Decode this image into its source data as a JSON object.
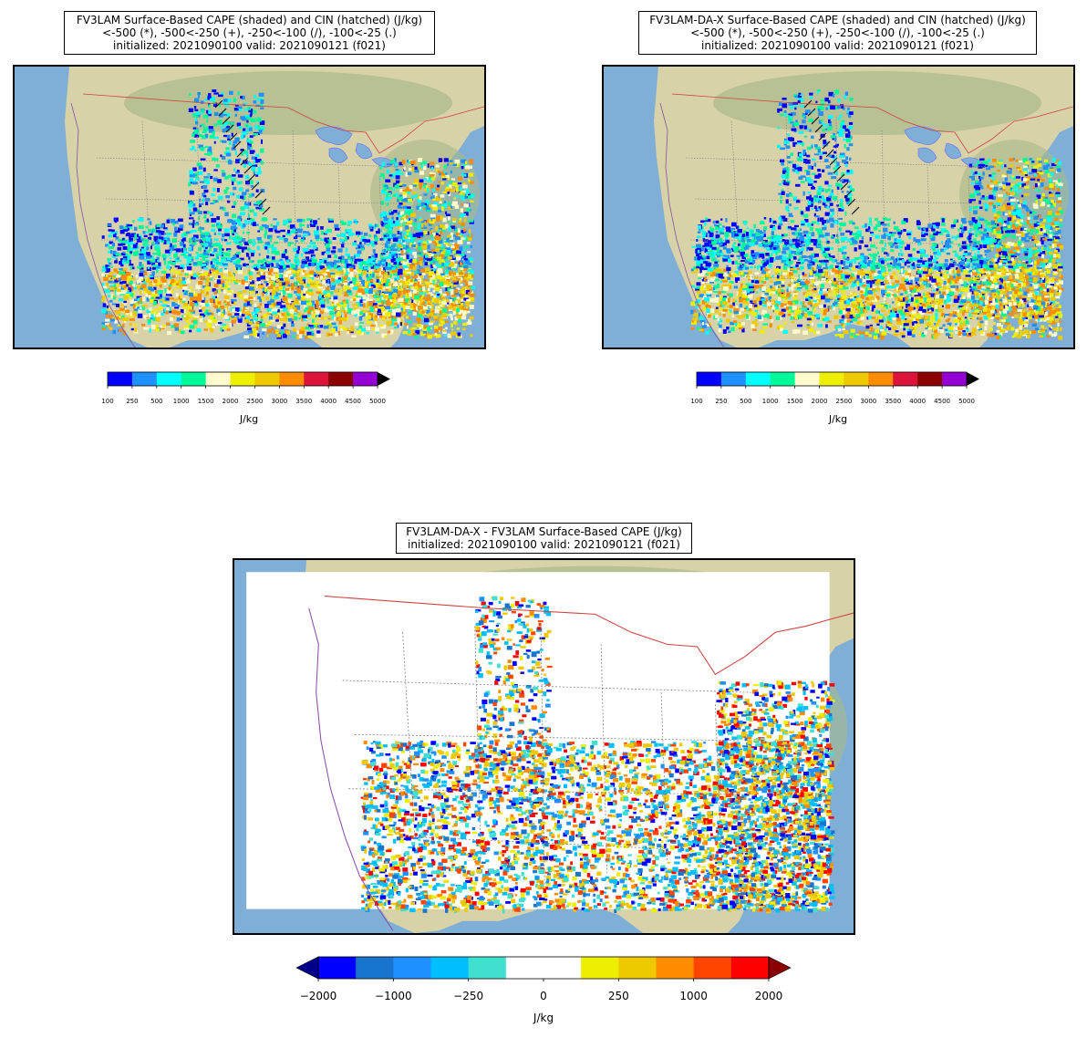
{
  "panels": [
    {
      "title_line1": "FV3LAM Surface-Based CAPE (shaded) and CIN (hatched) (J/kg)",
      "title_line2": "<-500 (*), -500<-250 (+), -250<-100 (/), -100<-25 (.)",
      "title_line3": "initialized: 2021090100 valid: 2021090121 (f021)"
    },
    {
      "title_line1": "FV3LAM-DA-X Surface-Based CAPE (shaded) and CIN (hatched) (J/kg)",
      "title_line2": "<-500 (*), -500<-250 (+), -250<-100 (/), -100<-25 (.)",
      "title_line3": "initialized: 2021090100 valid: 2021090121 (f021)"
    },
    {
      "title_line1": "FV3LAM-DA-X - FV3LAM Surface-Based CAPE (J/kg)",
      "title_line2": "initialized: 2021090100 valid: 2021090121 (f021)"
    }
  ],
  "cape_colorbar": {
    "label": "J/kg",
    "ticks": [
      "100",
      "250",
      "500",
      "1000",
      "1500",
      "2000",
      "2500",
      "3000",
      "3500",
      "4000",
      "4500",
      "5000"
    ],
    "colors": [
      "#0000ff",
      "#1e90ff",
      "#00ffff",
      "#00fa9a",
      "#fffacd",
      "#eeee00",
      "#eec900",
      "#ff8c00",
      "#dc143c",
      "#8b0000",
      "#9400d3"
    ],
    "extend_color": "#000000"
  },
  "diff_colorbar": {
    "label": "J/kg",
    "ticks": [
      "−2000",
      "−1000",
      "−250",
      "0",
      "250",
      "1000",
      "2000"
    ],
    "colors": [
      "#0000ff",
      "#1874cd",
      "#1e90ff",
      "#00bfff",
      "#40e0d0",
      "#ffffff",
      "#ffffff",
      "#eeee00",
      "#eec900",
      "#ff8c00",
      "#ff4500",
      "#ff0000"
    ],
    "extend_low": "#00008b",
    "extend_high": "#8b0000"
  },
  "map_colors": {
    "ocean": "#7fafd6",
    "land": "#d8d2a8",
    "forest": "#a9b98a",
    "state_line": "#808080",
    "border_line": "#d24040",
    "coast_line": "#8a4fa8",
    "lake_line": "#6b6bff"
  }
}
